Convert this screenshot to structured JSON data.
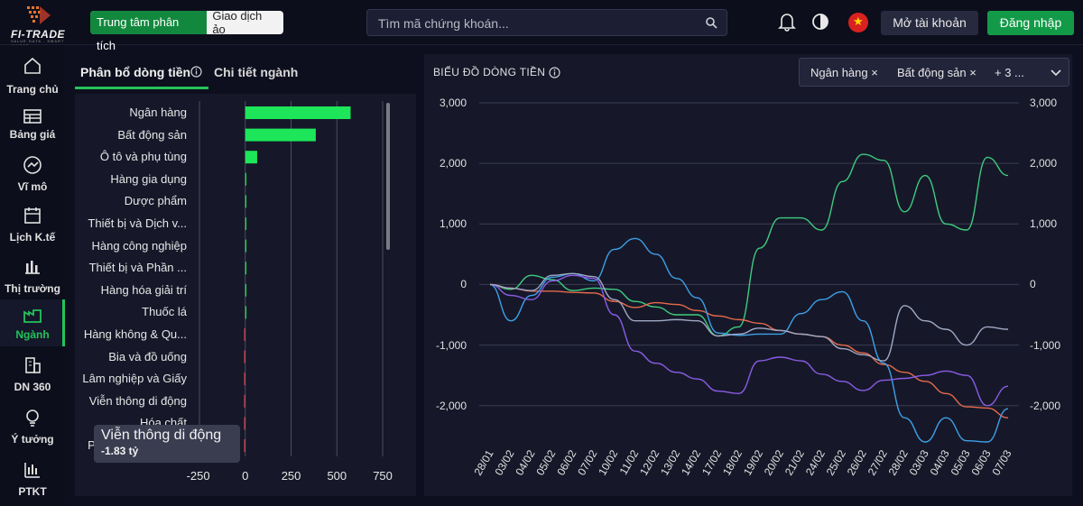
{
  "brand": {
    "name": "FI-TRADE",
    "tagline": "VALUE DATA - SMART INVEST"
  },
  "header": {
    "mode_active": "Trung tâm phân tích",
    "mode_inactive": "Giao dịch ảo",
    "search_placeholder": "Tìm mã chứng khoán...",
    "open_account": "Mở tài khoản",
    "login": "Đăng nhập",
    "accent": "#129a48"
  },
  "sidebar": {
    "items": [
      {
        "label": "Trang chủ",
        "icon": "home-icon"
      },
      {
        "label": "Bảng giá",
        "icon": "price-board-icon"
      },
      {
        "label": "Vĩ mô",
        "icon": "macro-icon"
      },
      {
        "label": "Lịch K.tế",
        "icon": "calendar-icon"
      },
      {
        "label": "Thị trường",
        "icon": "market-icon"
      },
      {
        "label": "Ngành",
        "icon": "industry-icon",
        "active": true
      },
      {
        "label": "DN 360",
        "icon": "building-icon"
      },
      {
        "label": "Ý tưởng",
        "icon": "idea-icon"
      },
      {
        "label": "PTKT",
        "icon": "candlestick-icon"
      }
    ]
  },
  "left_panel": {
    "tab_active": "Phân bổ dòng tiền",
    "tab_other": "Chi tiết ngành",
    "tooltip": {
      "title": "Viễn thông di động",
      "value": "-1.83 tỷ"
    }
  },
  "right_panel": {
    "title": "BIỂU ĐỒ DÒNG TIỀN",
    "filters": [
      "Ngân hàng ×",
      "Bất động sản ×",
      "+ 3 ..."
    ]
  },
  "chart_data": [
    {
      "type": "bar",
      "orientation": "horizontal",
      "categories": [
        "Ngân hàng",
        "Bất động sản",
        "Ô tô và phụ tùng",
        "Hàng gia dụng",
        "Dược phẩm",
        "Thiết bị và Dịch v...",
        "Hàng công nghiệp",
        "Thiết bị và Phần ...",
        "Hàng hóa giải trí",
        "Thuốc lá",
        "Hàng không & Qu...",
        "Bia và đồ uống",
        "Lâm nghiệp và Giấy",
        "Viễn thông di động",
        "Hóa chất",
        "Phân phối thực p..."
      ],
      "values": [
        575,
        385,
        65,
        5,
        1,
        0.5,
        0.3,
        0.2,
        0.1,
        0.05,
        -1,
        -1.2,
        -1.4,
        -1.83,
        -2.5,
        -3
      ],
      "x_ticks": [
        "-250",
        "0",
        "250",
        "500",
        "750"
      ],
      "xlim": [
        -250,
        750
      ],
      "positive_color": "#1ee65a",
      "negative_color": "#e0475e"
    },
    {
      "type": "line",
      "title": "BIỂU ĐỒ DÒNG TIỀN",
      "x": [
        "28/01",
        "03/02",
        "04/02",
        "05/02",
        "06/02",
        "07/02",
        "10/02",
        "11/02",
        "12/02",
        "13/02",
        "14/02",
        "17/02",
        "18/02",
        "19/02",
        "20/02",
        "21/02",
        "24/02",
        "25/02",
        "26/02",
        "27/02",
        "28/02",
        "03/03",
        "04/03",
        "05/03",
        "06/03",
        "07/03"
      ],
      "y_ticks": [
        "3,000",
        "2,000",
        "1,000",
        "0",
        "-1,000",
        "-2,000"
      ],
      "ylim": [
        -2600,
        3000
      ],
      "series": [
        {
          "color": "#3fcb7f",
          "values": [
            0,
            -80,
            150,
            80,
            -100,
            -60,
            -80,
            -280,
            -370,
            -500,
            -500,
            -850,
            -700,
            600,
            1100,
            1100,
            900,
            1700,
            2150,
            2050,
            1200,
            1800,
            1000,
            900,
            2100,
            1800
          ]
        },
        {
          "color": "#e66a4a",
          "values": [
            0,
            -60,
            -110,
            -110,
            -130,
            -140,
            -280,
            -380,
            -300,
            -330,
            -430,
            -520,
            -580,
            -640,
            -760,
            -820,
            -860,
            -1000,
            -1130,
            -1320,
            -1450,
            -1600,
            -1800,
            -2020,
            -2040,
            -2200
          ]
        },
        {
          "color": "#3ea0e8",
          "values": [
            0,
            -600,
            -180,
            120,
            180,
            60,
            580,
            760,
            500,
            100,
            -220,
            -800,
            -840,
            -820,
            -820,
            -480,
            -250,
            -120,
            -600,
            -1300,
            -2200,
            -2600,
            -2200,
            -2580,
            -2600,
            -2050
          ]
        },
        {
          "color": "#8a5ce6",
          "values": [
            0,
            -180,
            -250,
            60,
            150,
            100,
            -500,
            -1100,
            -1300,
            -1450,
            -1560,
            -1760,
            -1800,
            -1260,
            -1200,
            -1260,
            -1480,
            -1600,
            -1750,
            -1580,
            -1550,
            -1500,
            -1430,
            -1500,
            -2000,
            -1680
          ]
        },
        {
          "color": "#a0a8c4",
          "values": [
            0,
            -60,
            -100,
            150,
            180,
            130,
            -250,
            -600,
            -600,
            -580,
            -600,
            -850,
            -820,
            -720,
            -760,
            -820,
            -860,
            -1060,
            -1160,
            -1260,
            -350,
            -600,
            -740,
            -1000,
            -700,
            -740
          ]
        }
      ]
    }
  ]
}
